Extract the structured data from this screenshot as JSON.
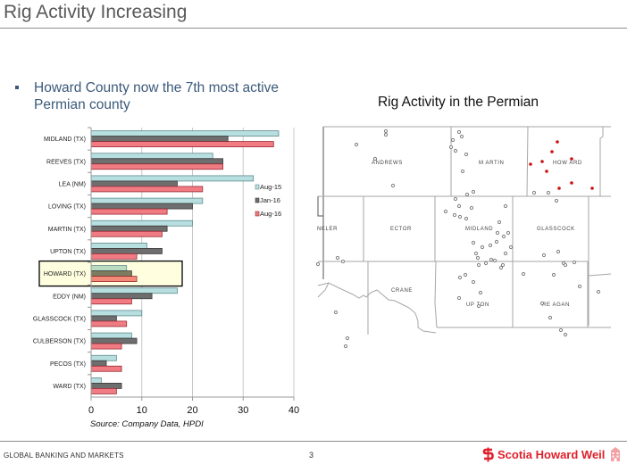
{
  "slide": {
    "title": "Rig Activity Increasing",
    "bullet": "Howard County now the 7th most active Permian county",
    "source": "Source: Company Data, HPDI",
    "footer_left": "GLOBAL BANKING AND MARKETS",
    "page_number": "3",
    "logo_text": "Scotia Howard Weil",
    "logo_icon": "scotiabank-s-icon",
    "logo_building_icon": "building-icon"
  },
  "colors": {
    "aug15": "#b8dfe0",
    "jan16": "#6e6e6e",
    "aug16": "#f07b83",
    "highlight_fill": "#ffffe0",
    "map_dot": "#808080",
    "map_dot_highlight": "#cc1111",
    "brand_red": "#e0202a"
  },
  "chart_data": {
    "type": "bar",
    "orientation": "horizontal",
    "title": "",
    "xlabel": "",
    "ylabel": "",
    "xlim": [
      0,
      40
    ],
    "xticks": [
      "0",
      "10",
      "20",
      "30",
      "40"
    ],
    "grid": true,
    "legend_position": "right",
    "highlighted_category": "HOWARD (TX)",
    "categories": [
      "MIDLAND (TX)",
      "REEVES (TX)",
      "LEA (NM)",
      "LOVING (TX)",
      "MARTIN (TX)",
      "UPTON (TX)",
      "HOWARD (TX)",
      "EDDY (NM)",
      "GLASSCOCK (TX)",
      "CULBERSON (TX)",
      "PECOS (TX)",
      "WARD (TX)"
    ],
    "series": [
      {
        "name": "Aug-15",
        "values": [
          37,
          24,
          32,
          22,
          20,
          11,
          7,
          17,
          10,
          8,
          5,
          2
        ]
      },
      {
        "name": "Jan-16",
        "values": [
          27,
          26,
          17,
          20,
          15,
          14,
          8,
          12,
          5,
          9,
          3,
          6
        ]
      },
      {
        "name": "Aug-16",
        "values": [
          36,
          26,
          22,
          15,
          14,
          9,
          9,
          8,
          7,
          6,
          6,
          5
        ]
      }
    ]
  },
  "map": {
    "title": "Rig Activity in the Permian",
    "county_labels": [
      "ANDREWS",
      "M ARTIN",
      "HOW ARD",
      "NKLER",
      "ECTOR",
      "MIDLAND",
      "GLASSCOCK",
      "CRANE",
      "UP TON",
      "RE AGAN"
    ]
  }
}
